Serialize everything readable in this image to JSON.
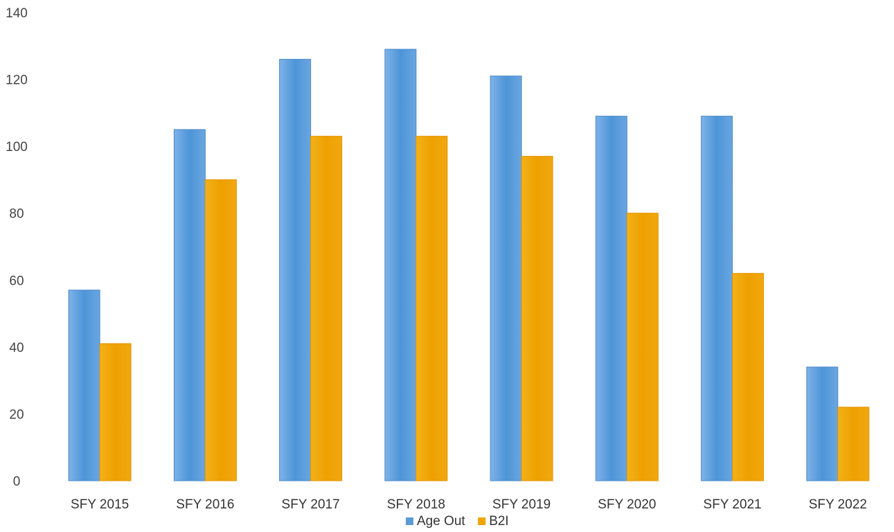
{
  "chart_data": {
    "type": "bar",
    "title": "",
    "xlabel": "",
    "ylabel": "",
    "categories": [
      "SFY 2015",
      "SFY 2016",
      "SFY 2017",
      "SFY 2018",
      "SFY 2019",
      "SFY 2020",
      "SFY 2021",
      "SFY 2022"
    ],
    "series": [
      {
        "name": "Age Out",
        "values": [
          57,
          105,
          126,
          129,
          121,
          109,
          109,
          34
        ],
        "color": "#5b9bd5"
      },
      {
        "name": "B2I",
        "values": [
          41,
          90,
          103,
          103,
          97,
          80,
          62,
          22
        ],
        "color": "#f0a500"
      }
    ],
    "ylim": [
      0,
      140
    ],
    "yticks": [
      0,
      20,
      40,
      60,
      80,
      100,
      120,
      140
    ],
    "grid": false,
    "legend": "bottom-center"
  }
}
